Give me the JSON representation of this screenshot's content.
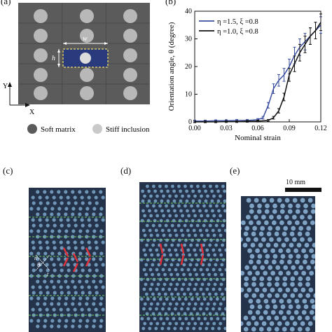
{
  "panels": {
    "a": {
      "label": "(a)",
      "w_label": "w",
      "h_label": "h",
      "x_axis": "X",
      "y_axis": "Y",
      "legend": {
        "soft": "Soft matrix",
        "stiff": "Stiff inclusion"
      },
      "colors": {
        "matrix": "#5b5b5b",
        "inclusion": "#b8b8b8",
        "cell": "#2a3b7d",
        "dash": "#d7c86a"
      }
    },
    "b": {
      "label": "(b)"
    },
    "c": {
      "label": "(c)",
      "theta_label": "θ",
      "n_label": "n",
      "t_label": "t"
    },
    "d": {
      "label": "(d)"
    },
    "e": {
      "label": "(e)",
      "scale_bar": "10 mm"
    }
  },
  "chart_data": {
    "type": "line",
    "xlabel": "Nominal strain",
    "ylabel": "Orientation angle, θ (degree)",
    "xlim": [
      0,
      0.12
    ],
    "ylim": [
      0,
      40
    ],
    "xticks": [
      "0.00",
      "0.03",
      "0.06",
      "0.09",
      "0.12"
    ],
    "yticks": [
      "0",
      "10",
      "20",
      "30",
      "40"
    ],
    "legend_position": "top-left",
    "series": [
      {
        "name": "η =1.5, ξ =0.8",
        "color": "#3b4fa0",
        "x": [
          0,
          0.01,
          0.02,
          0.03,
          0.04,
          0.05,
          0.06,
          0.065,
          0.07,
          0.075,
          0.08,
          0.085,
          0.09,
          0.095,
          0.1,
          0.105,
          0.11,
          0.115,
          0.12
        ],
        "y": [
          0.3,
          0.3,
          0.4,
          0.4,
          0.5,
          0.5,
          0.8,
          1.5,
          6,
          12,
          15,
          17,
          20,
          24,
          27,
          29,
          31,
          33,
          35
        ]
      },
      {
        "name": "η =1.0, ξ =0.8",
        "color": "#111111",
        "x": [
          0,
          0.01,
          0.02,
          0.03,
          0.04,
          0.05,
          0.06,
          0.07,
          0.075,
          0.08,
          0.085,
          0.09,
          0.095,
          0.1,
          0.105,
          0.11,
          0.115,
          0.12
        ],
        "y": [
          0,
          0,
          0,
          0.1,
          0.1,
          0.2,
          0.3,
          0.5,
          1.5,
          4,
          9,
          17,
          21,
          25,
          28,
          31,
          33,
          36
        ]
      }
    ]
  }
}
